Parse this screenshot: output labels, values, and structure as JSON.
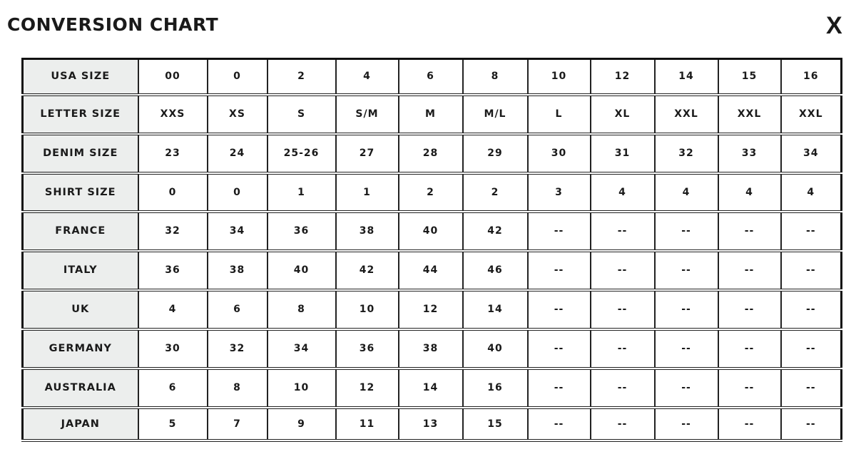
{
  "title": "CONVERSION CHART",
  "close_label": "X",
  "rows": [
    {
      "label": "USA SIZE",
      "values": [
        "00",
        "0",
        "2",
        "4",
        "6",
        "8",
        "10",
        "12",
        "14",
        "15",
        "16"
      ]
    },
    {
      "label": "LETTER SIZE",
      "values": [
        "XXS",
        "XS",
        "S",
        "S/M",
        "M",
        "M/L",
        "L",
        "XL",
        "XXL",
        "XXL",
        "XXL"
      ]
    },
    {
      "label": "DENIM SIZE",
      "values": [
        "23",
        "24",
        "25-26",
        "27",
        "28",
        "29",
        "30",
        "31",
        "32",
        "33",
        "34"
      ]
    },
    {
      "label": "SHIRT SIZE",
      "values": [
        "0",
        "0",
        "1",
        "1",
        "2",
        "2",
        "3",
        "4",
        "4",
        "4",
        "4"
      ]
    },
    {
      "label": "FRANCE",
      "values": [
        "32",
        "34",
        "36",
        "38",
        "40",
        "42",
        "--",
        "--",
        "--",
        "--",
        "--"
      ]
    },
    {
      "label": "ITALY",
      "values": [
        "36",
        "38",
        "40",
        "42",
        "44",
        "46",
        "--",
        "--",
        "--",
        "--",
        "--"
      ]
    },
    {
      "label": "UK",
      "values": [
        "4",
        "6",
        "8",
        "10",
        "12",
        "14",
        "--",
        "--",
        "--",
        "--",
        "--"
      ]
    },
    {
      "label": "GERMANY",
      "values": [
        "30",
        "32",
        "34",
        "36",
        "38",
        "40",
        "--",
        "--",
        "--",
        "--",
        "--"
      ]
    },
    {
      "label": "AUSTRALIA",
      "values": [
        "6",
        "8",
        "10",
        "12",
        "14",
        "16",
        "--",
        "--",
        "--",
        "--",
        "--"
      ]
    },
    {
      "label": "JAPAN",
      "values": [
        "5",
        "7",
        "9",
        "11",
        "13",
        "15",
        "--",
        "--",
        "--",
        "--",
        "--"
      ]
    }
  ]
}
